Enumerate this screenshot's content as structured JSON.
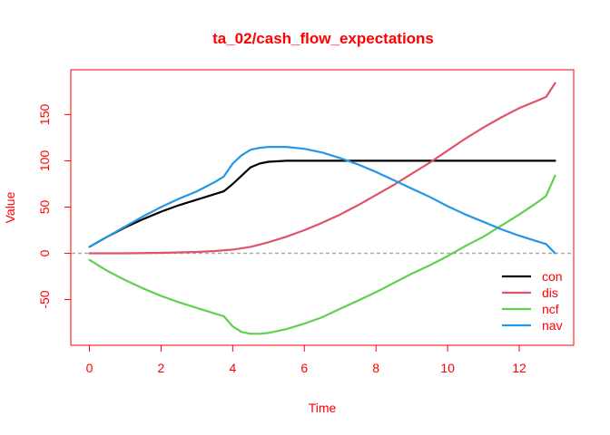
{
  "chart_data": {
    "type": "line",
    "title": "ta_02/cash_flow_expectations",
    "xlabel": "Time",
    "ylabel": "Value",
    "xlim": [
      -0.52,
      13.52
    ],
    "ylim": [
      -99.4,
      198.4
    ],
    "x_ticks": [
      0,
      2,
      4,
      6,
      8,
      10,
      12
    ],
    "y_ticks": [
      -50,
      0,
      50,
      100,
      150
    ],
    "reference_line": {
      "y": 0,
      "style": "dashed",
      "color": "#aaaaaa"
    },
    "legend_position": "bottom-right",
    "accent_color": "#ff0000",
    "series": [
      {
        "name": "con",
        "color": "#000000",
        "x": [
          0,
          0.5,
          1,
          1.5,
          2,
          2.5,
          3,
          3.5,
          3.75,
          4,
          4.25,
          4.5,
          4.75,
          5,
          5.5,
          6,
          7,
          8,
          9,
          10,
          11,
          12,
          12.75,
          13
        ],
        "y": [
          7,
          18,
          28,
          37,
          45,
          52,
          58,
          64,
          67,
          75,
          84,
          93,
          97,
          99,
          100,
          100,
          100,
          100,
          100,
          100,
          100,
          100,
          100,
          100
        ]
      },
      {
        "name": "dis",
        "color": "#df536b",
        "x": [
          0,
          1,
          2,
          3,
          3.5,
          4,
          4.5,
          5,
          5.5,
          6,
          6.5,
          7,
          7.5,
          8,
          8.5,
          9,
          9.5,
          10,
          10.5,
          11,
          11.5,
          12,
          12.5,
          12.75,
          13
        ],
        "y": [
          0,
          0,
          0.5,
          1.5,
          2.5,
          4,
          7,
          12,
          18,
          25,
          33,
          42,
          52,
          63,
          74,
          86,
          98,
          111,
          124,
          136,
          147,
          157,
          165,
          169,
          184
        ]
      },
      {
        "name": "ncf",
        "color": "#61d04f",
        "x": [
          0,
          0.5,
          1,
          1.5,
          2,
          2.5,
          3,
          3.5,
          3.75,
          4,
          4.25,
          4.5,
          4.75,
          5,
          5.5,
          6,
          6.5,
          7,
          7.5,
          8,
          8.5,
          9,
          9.5,
          10,
          10.5,
          11,
          11.5,
          12,
          12.5,
          12.75,
          13
        ],
        "y": [
          -7,
          -19,
          -29,
          -38,
          -46,
          -53,
          -59,
          -65,
          -68,
          -79,
          -85,
          -87,
          -87,
          -86,
          -82,
          -76,
          -69,
          -60,
          -51,
          -42,
          -32,
          -22,
          -13,
          -3,
          8,
          18,
          30,
          42,
          55,
          62,
          84
        ]
      },
      {
        "name": "nav",
        "color": "#2297e6",
        "x": [
          0,
          0.5,
          1,
          1.5,
          2,
          2.5,
          3,
          3.5,
          3.75,
          4,
          4.25,
          4.5,
          4.75,
          5,
          5.5,
          6,
          6.5,
          7,
          7.5,
          8,
          8.5,
          9,
          9.5,
          10,
          10.5,
          11,
          11.5,
          12,
          12.5,
          12.75,
          13
        ],
        "y": [
          7,
          18,
          29,
          40,
          50,
          59,
          67,
          77,
          83,
          97,
          106,
          112,
          114,
          115,
          115,
          113,
          109,
          103,
          96,
          88,
          79,
          70,
          61,
          51,
          42,
          34,
          26,
          19,
          13,
          10,
          0
        ]
      }
    ]
  }
}
